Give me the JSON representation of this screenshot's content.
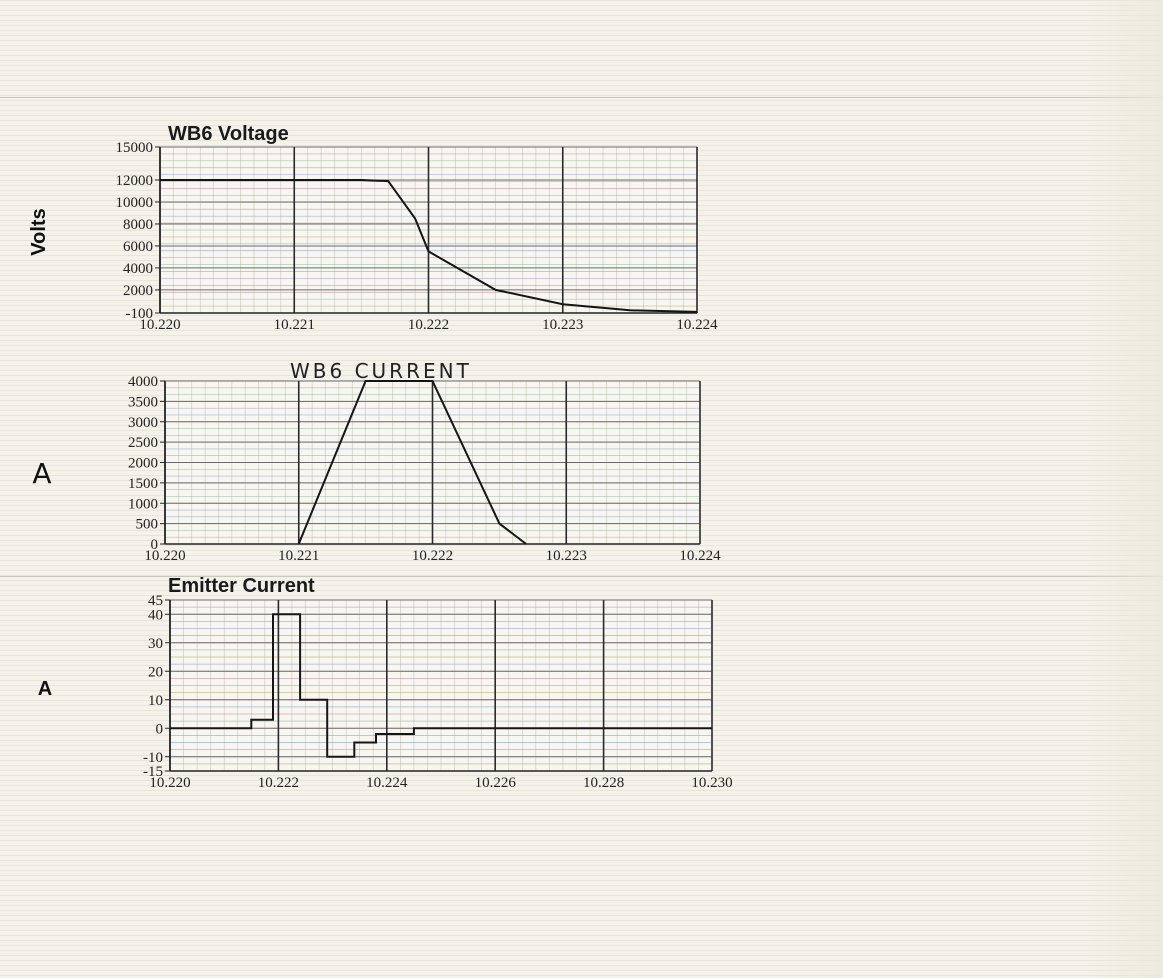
{
  "chart_data": [
    {
      "type": "line",
      "title": "WB6 Voltage",
      "ylabel": "Volts",
      "xlabel": "",
      "xlim": [
        10.22,
        10.224
      ],
      "ylim": [
        -100,
        15000
      ],
      "x_ticks": [
        "10.220",
        "10.221",
        "10.222",
        "10.223",
        "10.224"
      ],
      "y_ticks": [
        "15000",
        "12000",
        "10000",
        "8000",
        "6000",
        "4000",
        "2000",
        "-100"
      ],
      "y_tick_values": [
        15000,
        12000,
        10000,
        8000,
        6000,
        4000,
        2000,
        -100
      ],
      "grid": true,
      "series": [
        {
          "x": [
            10.22,
            10.2215,
            10.2217,
            10.2219,
            10.222,
            10.2225,
            10.223,
            10.2235,
            10.224
          ],
          "y": [
            12000,
            12000,
            11900,
            8500,
            5500,
            2000,
            700,
            150,
            0
          ]
        }
      ]
    },
    {
      "type": "line",
      "title": "WB6 CURRENT",
      "ylabel": "A",
      "xlabel": "",
      "xlim": [
        10.22,
        10.224
      ],
      "ylim": [
        0,
        4000
      ],
      "x_ticks": [
        "10.220",
        "10.221",
        "10.222",
        "10.223",
        "10.224"
      ],
      "y_ticks": [
        "4000",
        "3500",
        "3000",
        "2500",
        "2000",
        "1500",
        "1000",
        "500",
        "0"
      ],
      "y_tick_values": [
        4000,
        3500,
        3000,
        2500,
        2000,
        1500,
        1000,
        500,
        0
      ],
      "grid": true,
      "series": [
        {
          "x": [
            10.221,
            10.2215,
            10.222,
            10.2225,
            10.2227
          ],
          "y": [
            0,
            4000,
            4000,
            500,
            0
          ]
        }
      ]
    },
    {
      "type": "line",
      "title": "Emitter Current",
      "ylabel": "A",
      "xlabel": "",
      "xlim": [
        10.22,
        10.23
      ],
      "ylim": [
        -15,
        45
      ],
      "x_ticks": [
        "10.220",
        "10.222",
        "10.224",
        "10.226",
        "10.228",
        "10.230"
      ],
      "y_ticks": [
        "45",
        "40",
        "30",
        "20",
        "10",
        "0",
        "-10",
        "-15"
      ],
      "y_tick_values": [
        45,
        40,
        30,
        20,
        10,
        0,
        -10,
        -15
      ],
      "grid": true,
      "series": [
        {
          "x": [
            10.22,
            10.2215,
            10.2215,
            10.2219,
            10.2219,
            10.2224,
            10.2224,
            10.2229,
            10.2229,
            10.2234,
            10.2234,
            10.2238,
            10.2238,
            10.2245,
            10.2245,
            10.2255,
            10.23
          ],
          "y": [
            0,
            0,
            3,
            3,
            40,
            40,
            10,
            10,
            -10,
            -10,
            -5,
            -5,
            -2,
            -2,
            0,
            0,
            0
          ]
        }
      ]
    }
  ]
}
